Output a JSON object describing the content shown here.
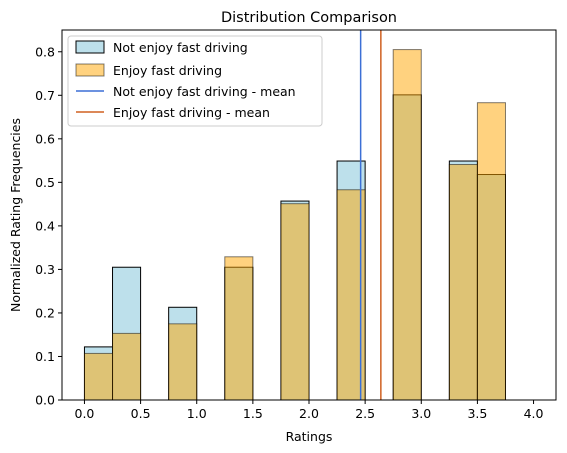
{
  "chart_data": {
    "type": "bar",
    "title": "Distribution Comparison",
    "xlabel": "Ratings",
    "ylabel": "Normalized Rating Frequencies",
    "xlim": [
      -0.2,
      4.2
    ],
    "ylim": [
      0,
      0.85
    ],
    "xticks": [
      "0.0",
      "0.5",
      "1.0",
      "1.5",
      "2.0",
      "2.5",
      "3.0",
      "3.5",
      "4.0"
    ],
    "yticks": [
      "0.0",
      "0.1",
      "0.2",
      "0.3",
      "0.4",
      "0.5",
      "0.6",
      "0.7",
      "0.8"
    ],
    "bin_edges": [
      0.0,
      0.25,
      0.5,
      0.75,
      1.0,
      1.25,
      1.5,
      1.75,
      2.0,
      2.25,
      2.5,
      2.75,
      3.0,
      3.25,
      3.5,
      3.75,
      4.0
    ],
    "legend_position": "upper-left",
    "series": [
      {
        "name": "Not enjoy fast driving",
        "color": "#add8e6",
        "edgecolor": "#000000",
        "values": [
          0.122,
          0.305,
          0.0,
          0.213,
          0.0,
          0.305,
          0.0,
          0.457,
          0.0,
          0.549,
          0.0,
          0.701,
          0.0,
          0.549,
          0.518,
          0.0
        ],
        "mean": 2.46,
        "mean_color": "#3b6fd6",
        "mean_label": "Not enjoy fast driving - mean"
      },
      {
        "name": "Enjoy fast driving",
        "color": "#ffa500",
        "edgecolor": "#000000",
        "values": [
          0.107,
          0.153,
          0.0,
          0.175,
          0.0,
          0.329,
          0.0,
          0.451,
          0.0,
          0.483,
          0.0,
          0.805,
          0.0,
          0.541,
          0.683,
          0.0
        ],
        "mean": 2.64,
        "mean_color": "#d06020",
        "mean_label": "Enjoy fast driving - mean"
      }
    ]
  }
}
